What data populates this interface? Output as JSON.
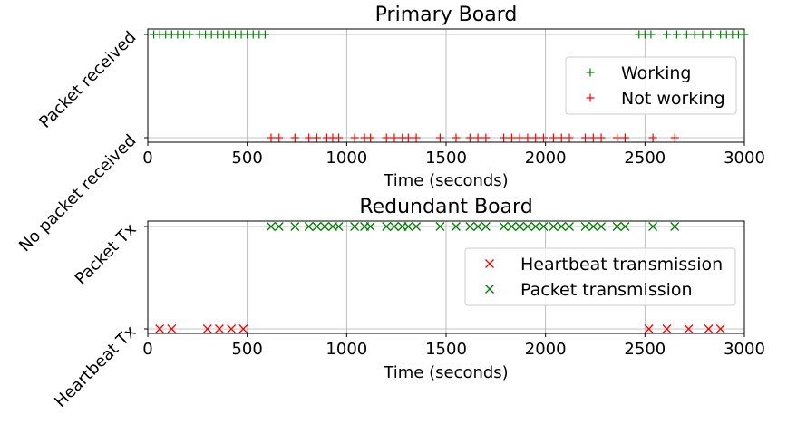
{
  "chart_data": [
    {
      "type": "scatter",
      "title": "Primary Board",
      "xlabel": "Time (seconds)",
      "ylabel": "",
      "xlim": [
        0,
        3000
      ],
      "xticks": [
        "0",
        "500",
        "1000",
        "1500",
        "2000",
        "2500",
        "3000"
      ],
      "yticks": [
        "No packet received",
        "Packet received"
      ],
      "grid": true,
      "legend_position": "center-right",
      "series": [
        {
          "name": "Working",
          "marker": "+",
          "color": "#008000",
          "y": "Packet received",
          "x": [
            30,
            60,
            90,
            120,
            150,
            180,
            210,
            260,
            290,
            320,
            350,
            380,
            410,
            440,
            470,
            500,
            530,
            560,
            590,
            2470,
            2500,
            2530,
            2610,
            2660,
            2710,
            2750,
            2790,
            2830,
            2880,
            2910,
            2940,
            2970,
            3000
          ]
        },
        {
          "name": "Not working",
          "marker": "+",
          "color": "#ff0000",
          "y": "No packet received",
          "x": [
            620,
            660,
            740,
            810,
            850,
            900,
            930,
            960,
            1040,
            1090,
            1120,
            1200,
            1240,
            1280,
            1310,
            1350,
            1470,
            1550,
            1620,
            1660,
            1700,
            1790,
            1830,
            1870,
            1910,
            1950,
            1990,
            2040,
            2080,
            2120,
            2200,
            2240,
            2280,
            2360,
            2400,
            2540,
            2650
          ]
        }
      ]
    },
    {
      "type": "scatter",
      "title": "Redundant Board",
      "xlabel": "Time (seconds)",
      "ylabel": "",
      "xlim": [
        0,
        3000
      ],
      "xticks": [
        "0",
        "500",
        "1000",
        "1500",
        "2000",
        "2500",
        "3000"
      ],
      "yticks": [
        "Heartbeat Tx",
        "Packet Tx"
      ],
      "grid": true,
      "legend_position": "center-right",
      "series": [
        {
          "name": "Heartbeat transmission",
          "marker": "x",
          "color": "#ff0000",
          "y": "Heartbeat Tx",
          "x": [
            60,
            120,
            300,
            360,
            420,
            480,
            2520,
            2610,
            2720,
            2820,
            2880
          ]
        },
        {
          "name": "Packet transmission",
          "marker": "x",
          "color": "#008000",
          "y": "Packet Tx",
          "x": [
            620,
            660,
            740,
            810,
            850,
            890,
            930,
            960,
            1040,
            1090,
            1120,
            1200,
            1240,
            1280,
            1310,
            1350,
            1470,
            1550,
            1620,
            1660,
            1700,
            1790,
            1830,
            1870,
            1910,
            1950,
            1990,
            2040,
            2080,
            2120,
            2200,
            2240,
            2280,
            2360,
            2400,
            2540,
            2650
          ]
        }
      ]
    }
  ]
}
